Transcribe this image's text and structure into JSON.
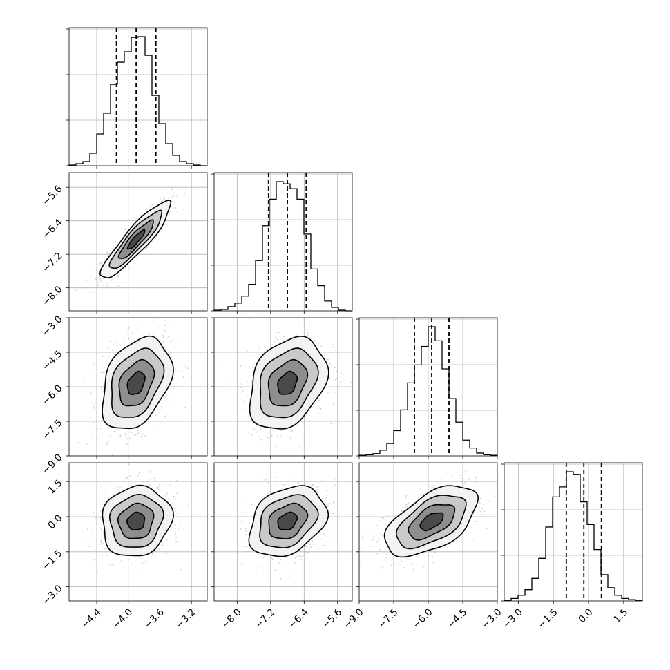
{
  "chart_data": {
    "type": "corner",
    "parameters": [
      {
        "id": "p0",
        "range": [
          -4.75,
          -3.0
        ],
        "ticks": [
          -4.4,
          -4.0,
          -3.6,
          -3.2
        ],
        "tick_labels": [
          "−4.4",
          "−4.0",
          "−3.6",
          "−3.2"
        ],
        "quantiles": [
          -4.15,
          -3.9,
          -3.65
        ]
      },
      {
        "id": "p1",
        "range": [
          -8.55,
          -5.25
        ],
        "ticks": [
          -8.0,
          -7.2,
          -6.4,
          -5.6
        ],
        "tick_labels": [
          "−8.0",
          "−7.2",
          "−6.4",
          "−5.6"
        ],
        "quantiles": [
          -7.25,
          -6.8,
          -6.35
        ]
      },
      {
        "id": "p2",
        "range": [
          -9.0,
          -3.0
        ],
        "ticks": [
          -9.0,
          -7.5,
          -6.0,
          -4.5,
          -3.0
        ],
        "tick_labels": [
          "−9.0",
          "−7.5",
          "−6.0",
          "−4.5",
          "−3.0"
        ],
        "quantiles": [
          -6.6,
          -5.85,
          -5.1
        ]
      },
      {
        "id": "p3",
        "range": [
          -3.6,
          2.3
        ],
        "ticks": [
          -3.0,
          -1.5,
          0.0,
          1.5
        ],
        "tick_labels": [
          "−3.0",
          "−1.5",
          "0.0",
          "1.5"
        ],
        "quantiles": [
          -0.95,
          -0.2,
          0.55
        ]
      }
    ],
    "histograms": [
      {
        "param": "p0",
        "bin_edges_range": [
          -4.75,
          -3.0
        ],
        "counts": [
          1,
          3,
          6,
          18,
          46,
          76,
          118,
          150,
          165,
          186,
          187,
          160,
          102,
          61,
          32,
          15,
          6,
          3,
          1,
          0
        ]
      },
      {
        "param": "p1",
        "bin_edges_range": [
          -8.55,
          -5.25
        ],
        "counts": [
          1,
          2,
          6,
          11,
          21,
          38,
          72,
          122,
          160,
          185,
          182,
          175,
          160,
          110,
          60,
          36,
          14,
          5,
          1,
          0
        ]
      },
      {
        "param": "p2",
        "bin_edges_range": [
          -9.0,
          -3.0
        ],
        "counts": [
          1,
          2,
          4,
          10,
          22,
          45,
          82,
          130,
          162,
          195,
          230,
          205,
          155,
          102,
          60,
          28,
          14,
          5,
          2,
          1
        ]
      },
      {
        "param": "p3",
        "bin_edges_range": [
          -3.6,
          2.3
        ],
        "counts": [
          1,
          4,
          9,
          18,
          36,
          68,
          118,
          166,
          182,
          206,
          202,
          158,
          122,
          82,
          42,
          21,
          9,
          4,
          2,
          1
        ]
      }
    ],
    "pairs": [
      {
        "x": "p0",
        "y": "p1",
        "center": [
          -3.9,
          -6.85
        ],
        "sigma": [
          0.22,
          0.46
        ],
        "corr": 0.9
      },
      {
        "x": "p0",
        "y": "p2",
        "center": [
          -3.9,
          -5.85
        ],
        "sigma": [
          0.22,
          1.0
        ],
        "corr": 0.35
      },
      {
        "x": "p1",
        "y": "p2",
        "center": [
          -6.8,
          -5.85
        ],
        "sigma": [
          0.46,
          1.0
        ],
        "corr": 0.3
      },
      {
        "x": "p0",
        "y": "p3",
        "center": [
          -3.9,
          -0.2
        ],
        "sigma": [
          0.22,
          0.75
        ],
        "corr": 0.1
      },
      {
        "x": "p1",
        "y": "p3",
        "center": [
          -6.8,
          -0.2
        ],
        "sigma": [
          0.46,
          0.75
        ],
        "corr": 0.3
      },
      {
        "x": "p2",
        "y": "p3",
        "center": [
          -5.85,
          -0.2
        ],
        "sigma": [
          1.0,
          0.75
        ],
        "corr": 0.55
      }
    ],
    "contour_levels_sigma": [
      0.5,
      1.0,
      1.5,
      2.0
    ],
    "grid": true,
    "quantile_line_style": "dashed",
    "title": "",
    "xlabel": "",
    "ylabel": ""
  }
}
